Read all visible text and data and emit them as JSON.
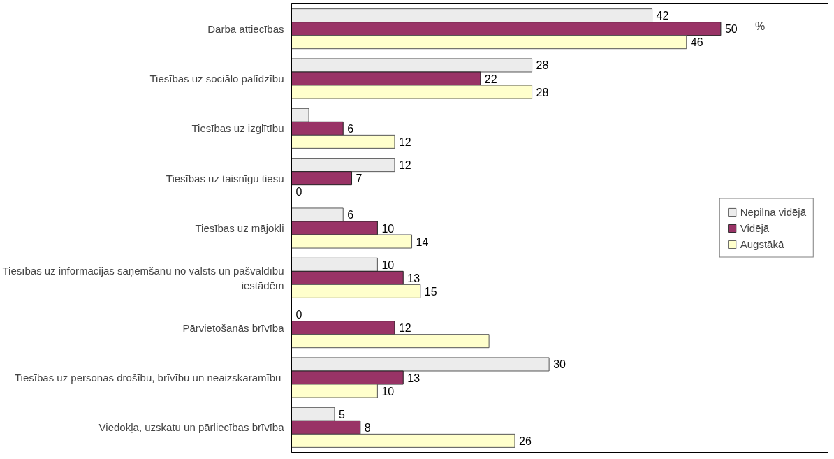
{
  "chart_data": {
    "type": "bar",
    "orientation": "horizontal",
    "categories": [
      "Darba attiecības",
      "Tiesības uz sociālo palīdzību",
      "Tiesības uz izglītību",
      "Tiesības uz taisnīgu tiesu",
      "Tiesības uz mājokli",
      "Tiesības uz informācijas saņemšanu no valsts un pašvaldību iestādēm",
      "Pārvietošanās brīvība",
      "Tiesības uz personas drošību, brīvību un  neaizskaramību",
      "Viedokļa, uzskatu un pārliecības brīvība"
    ],
    "series": [
      {
        "name": "Nepilna vidējā",
        "color": "#ececec",
        "values": [
          42,
          28,
          2,
          12,
          6,
          10,
          0,
          30,
          5
        ],
        "value_labels": [
          "42",
          "28",
          null,
          "12",
          "6",
          "10",
          "0",
          "30",
          "5"
        ]
      },
      {
        "name": "Vidējā",
        "color": "#993366",
        "values": [
          50,
          22,
          6,
          7,
          10,
          13,
          12,
          13,
          8
        ],
        "value_labels": [
          "50",
          "22",
          "6",
          "7",
          "10",
          "13",
          "12",
          "13",
          "8"
        ]
      },
      {
        "name": "Augstākā",
        "color": "#ffffcc",
        "values": [
          46,
          28,
          12,
          0,
          14,
          15,
          23,
          10,
          26
        ],
        "value_labels": [
          "46",
          "28",
          "12",
          "0",
          "14",
          "15",
          null,
          "10",
          "26"
        ]
      }
    ],
    "annotations": [
      "%"
    ],
    "legend": "right",
    "grid": false
  }
}
